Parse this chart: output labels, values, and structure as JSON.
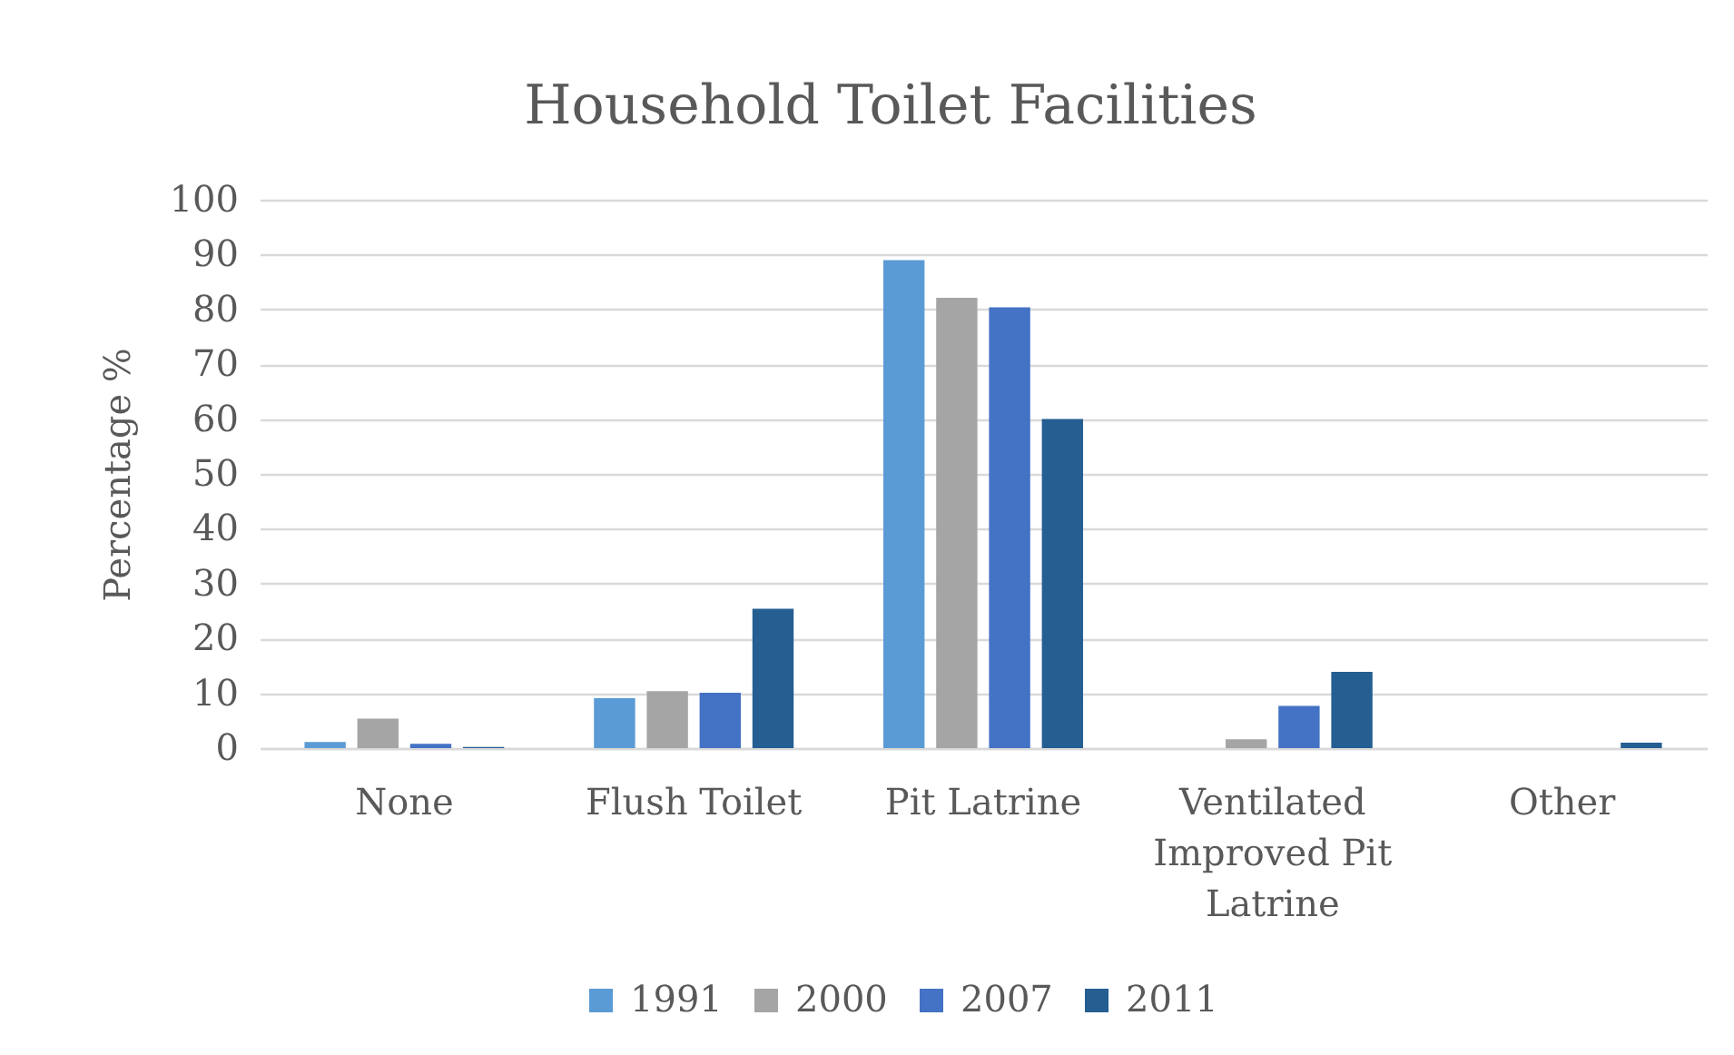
{
  "chart_data": {
    "type": "bar",
    "title": "Household Toilet Facilities",
    "ylabel": "Percentage %",
    "categories": [
      "None",
      "Flush Toilet",
      "Pit Latrine",
      "Ventilated Improved Pit Latrine",
      "Other"
    ],
    "series": [
      {
        "name": "1991",
        "color": "#5b9bd5",
        "values": [
          1.1,
          9.1,
          89.0,
          null,
          null
        ]
      },
      {
        "name": "2000",
        "color": "#a5a5a5",
        "values": [
          5.4,
          10.4,
          82.1,
          1.6,
          null
        ]
      },
      {
        "name": "2007",
        "color": "#4472c4",
        "values": [
          0.8,
          10.1,
          80.4,
          7.7,
          null
        ]
      },
      {
        "name": "2011",
        "color": "#255e91",
        "values": [
          0.2,
          25.4,
          60.0,
          13.9,
          1.0
        ]
      }
    ],
    "ylim": [
      0,
      100
    ],
    "yticks": [
      0,
      10,
      20,
      30,
      40,
      50,
      60,
      70,
      80,
      90,
      100
    ],
    "grid": "y",
    "legend": "bottom"
  }
}
